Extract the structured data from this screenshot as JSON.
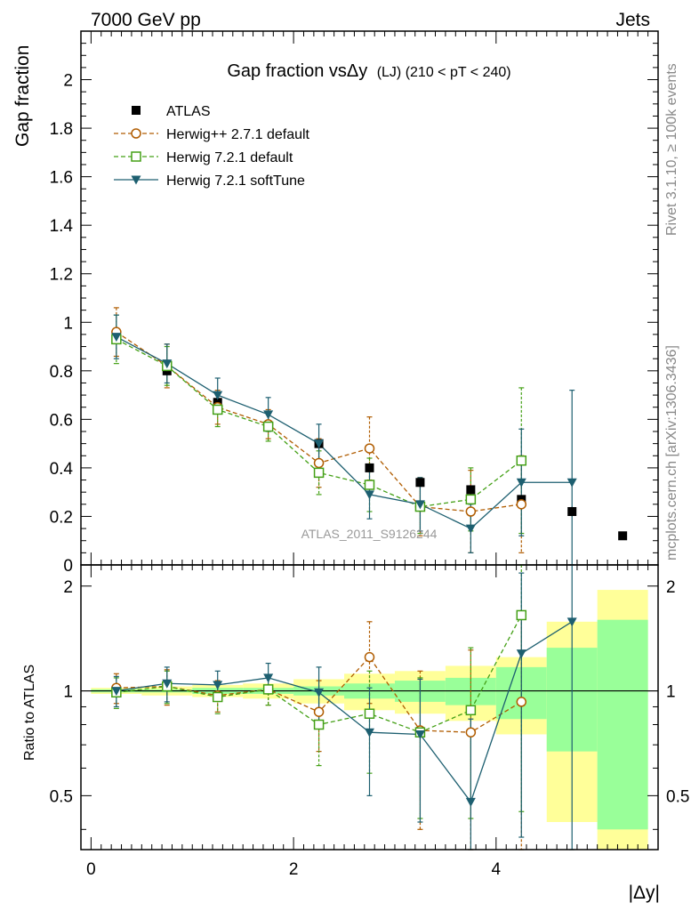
{
  "header": {
    "left": "7000 GeV pp",
    "right": "Jets",
    "side_top": "Rivet 3.1.10, ≥ 100k events",
    "side_bottom": "mcplots.cern.ch [arXiv:1306.3436]"
  },
  "chart_data": [
    {
      "type": "scatter",
      "panel": "main",
      "title": "Gap fraction vsΔy",
      "title_suffix": "(LJ) (210 < pT < 240)",
      "ylabel": "Gap fraction",
      "xlim": [
        -0.1,
        5.6
      ],
      "ylim": [
        0,
        2.2
      ],
      "yticks": [
        "0",
        "0.2",
        "0.4",
        "0.6",
        "0.8",
        "1",
        "1.2",
        "1.4",
        "1.6",
        "1.8",
        "2"
      ],
      "watermark": "ATLAS_2011_S9126244",
      "legend_position": "top-left",
      "x": [
        0.25,
        0.75,
        1.25,
        1.75,
        2.25,
        2.75,
        3.25,
        3.75,
        4.25,
        4.75,
        5.25
      ],
      "series": [
        {
          "name": "ATLAS",
          "color": "#000000",
          "marker": "square-filled",
          "dash": "none",
          "values": [
            0.94,
            0.8,
            0.67,
            0.57,
            0.5,
            0.4,
            0.34,
            0.31,
            0.27,
            0.22,
            0.12
          ],
          "errors": [
            0.02,
            0.02,
            0.02,
            0.02,
            0.02,
            0.02,
            0.02,
            0.02,
            0.02,
            0.02,
            0.01
          ]
        },
        {
          "name": "Herwig++ 2.7.1 default",
          "color": "#b05c00",
          "marker": "circle-open",
          "dash": "5,3",
          "values": [
            0.96,
            0.82,
            0.65,
            0.58,
            0.42,
            0.48,
            0.24,
            0.22,
            0.25,
            null,
            null
          ],
          "errors": [
            0.1,
            0.09,
            0.07,
            0.06,
            0.1,
            0.13,
            0.12,
            0.17,
            0.2,
            null,
            null
          ]
        },
        {
          "name": "Herwig 7.2.1 default",
          "color": "#44a016",
          "marker": "square-open",
          "dash": "5,3",
          "values": [
            0.93,
            0.82,
            0.64,
            0.57,
            0.38,
            0.33,
            0.24,
            0.27,
            0.43,
            null,
            null
          ],
          "errors": [
            0.1,
            0.08,
            0.07,
            0.06,
            0.09,
            0.11,
            0.11,
            0.13,
            0.3,
            null,
            null
          ]
        },
        {
          "name": "Herwig 7.2.1 softTune",
          "color": "#1d5f70",
          "marker": "triangle-down-filled",
          "dash": "none",
          "values": [
            0.94,
            0.83,
            0.7,
            0.62,
            0.5,
            0.29,
            0.25,
            0.15,
            0.34,
            0.34,
            null
          ],
          "errors": [
            0.09,
            0.08,
            0.07,
            0.07,
            0.08,
            0.1,
            0.11,
            0.1,
            0.22,
            0.38,
            null
          ]
        }
      ]
    },
    {
      "type": "scatter",
      "panel": "ratio",
      "ylabel": "Ratio to ATLAS",
      "xlabel": "|Δy|",
      "xlim": [
        -0.1,
        5.6
      ],
      "ylim": [
        0.35,
        2.3
      ],
      "log_scale": true,
      "xticks": [
        "0",
        "2",
        "4"
      ],
      "yticks": [
        "0.5",
        "1",
        "2"
      ],
      "reference_line": 1,
      "bands": {
        "bin_edges": [
          0,
          0.5,
          1.0,
          1.5,
          2.0,
          2.5,
          3.0,
          3.5,
          4.0,
          4.5,
          5.0,
          5.5
        ],
        "stat_color": "#99ff99",
        "total_color": "#ffff99",
        "stat_halfwidth": [
          0.01,
          0.01,
          0.02,
          0.02,
          0.03,
          0.05,
          0.07,
          0.09,
          0.17,
          0.33,
          0.6
        ],
        "total_halfwidth": [
          0.02,
          0.03,
          0.04,
          0.05,
          0.08,
          0.12,
          0.14,
          0.18,
          0.25,
          0.58,
          0.95
        ]
      },
      "series": [
        {
          "name": "Herwig++ 2.7.1 default",
          "color": "#b05c00",
          "marker": "circle-open",
          "dash": "5,3",
          "values": [
            1.02,
            1.03,
            0.97,
            1.01,
            0.87,
            1.25,
            0.77,
            0.76,
            0.93,
            null,
            null
          ],
          "errors": [
            0.1,
            0.12,
            0.1,
            0.1,
            0.2,
            0.33,
            0.37,
            0.55,
            0.75,
            null,
            null
          ]
        },
        {
          "name": "Herwig 7.2.1 default",
          "color": "#44a016",
          "marker": "square-open",
          "dash": "5,3",
          "values": [
            0.99,
            1.03,
            0.96,
            1.01,
            0.8,
            0.86,
            0.76,
            0.88,
            1.65,
            null,
            null
          ],
          "errors": [
            0.1,
            0.11,
            0.1,
            0.1,
            0.19,
            0.28,
            0.33,
            0.45,
            1.2,
            null,
            null
          ]
        },
        {
          "name": "Herwig 7.2.1 softTune",
          "color": "#1d5f70",
          "marker": "triangle-down-filled",
          "dash": "none",
          "values": [
            1.0,
            1.05,
            1.04,
            1.09,
            0.99,
            0.76,
            0.75,
            0.48,
            1.28,
            1.58,
            null
          ],
          "errors": [
            0.1,
            0.12,
            0.1,
            0.11,
            0.18,
            0.26,
            0.33,
            0.35,
            0.9,
            1.8,
            null
          ]
        }
      ]
    }
  ]
}
